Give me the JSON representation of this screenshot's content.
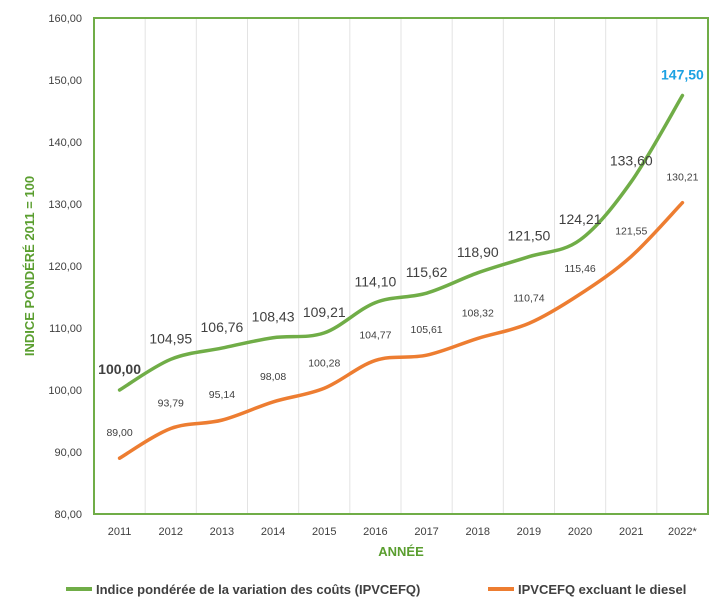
{
  "chart_data": {
    "type": "line",
    "title": "",
    "xlabel": "ANNÉE",
    "ylabel": "INDICE PONDÉRÉ 2011 = 100",
    "ylim": [
      80,
      160
    ],
    "y_ticks": [
      "80,00",
      "90,00",
      "100,00",
      "110,00",
      "120,00",
      "130,00",
      "140,00",
      "150,00",
      "160,00"
    ],
    "categories": [
      "2011",
      "2012",
      "2013",
      "2014",
      "2015",
      "2016",
      "2017",
      "2018",
      "2019",
      "2020",
      "2021",
      "2022*"
    ],
    "grid": "vertical",
    "legend_position": "bottom",
    "series": [
      {
        "name": "Indice pondérée de la variation des coûts (IPVCEFQ)",
        "color": "#70ad47",
        "values": [
          100.0,
          104.95,
          106.76,
          108.43,
          109.21,
          114.1,
          115.62,
          118.9,
          121.5,
          124.21,
          133.6,
          147.5
        ],
        "labels": [
          "100,00",
          "104,95",
          "106,76",
          "108,43",
          "109,21",
          "114,10",
          "115,62",
          "118,90",
          "121,50",
          "124,21",
          "133,60",
          "147,50"
        ],
        "first_label_bold": true,
        "last_label_color": "#1ba1e2"
      },
      {
        "name": "IPVCEFQ excluant le diesel",
        "color": "#ed7d31",
        "values": [
          89.0,
          93.79,
          95.14,
          98.08,
          100.28,
          104.77,
          105.61,
          108.32,
          110.74,
          115.46,
          121.55,
          130.21
        ],
        "labels": [
          "89,00",
          "93,79",
          "95,14",
          "98,08",
          "100,28",
          "104,77",
          "105,61",
          "108,32",
          "110,74",
          "115,46",
          "121,55",
          "130,21"
        ]
      }
    ]
  }
}
